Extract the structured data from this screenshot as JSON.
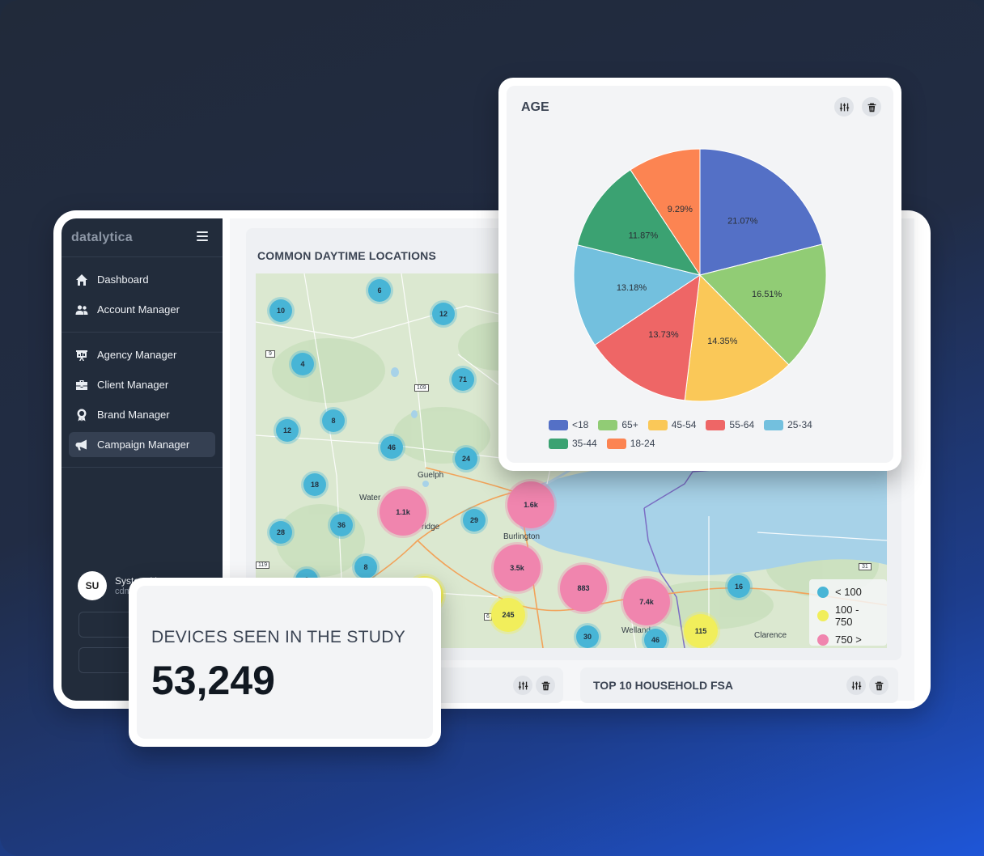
{
  "sidebar": {
    "logo": "datalytica",
    "items": [
      {
        "label": "Dashboard",
        "icon": "home-icon"
      },
      {
        "label": "Account Manager",
        "icon": "users-icon"
      },
      {
        "label": "Agency Manager",
        "icon": "presentation-icon"
      },
      {
        "label": "Client Manager",
        "icon": "briefcase-icon"
      },
      {
        "label": "Brand Manager",
        "icon": "award-icon"
      },
      {
        "label": "Campaign Manager",
        "icon": "megaphone-icon"
      }
    ],
    "user": {
      "initials": "SU",
      "name": "System User",
      "email": "cdm"
    },
    "button1": "M",
    "button2": "S"
  },
  "map_card": {
    "title": "COMMON DAYTIME LOCATIONS",
    "places": [
      "Guelph",
      "Water",
      "ridge",
      "Burlington",
      "Welland",
      "Clarence"
    ],
    "road_labels": [
      "9",
      "109",
      "119",
      "31",
      "6"
    ],
    "clusters": [
      "6",
      "12",
      "10",
      "4",
      "71",
      "8",
      "12",
      "46",
      "24",
      "18",
      "1.1k",
      "1.6k",
      "36",
      "29",
      "28",
      "8",
      "3.5k",
      "2",
      "883",
      "7.4k",
      "16",
      "245",
      "30",
      "46",
      "115"
    ],
    "legend": [
      {
        "label": "< 100",
        "color": "#48b5d6"
      },
      {
        "label": "100 - 750",
        "color": "#f1ee5b"
      },
      {
        "label": "750 >",
        "color": "#f085ae"
      }
    ]
  },
  "bottom_cards": {
    "right_title": "TOP 10 HOUSEHOLD FSA"
  },
  "age_card": {
    "title": "AGE"
  },
  "chart_data": {
    "type": "pie",
    "title": "AGE",
    "categories": [
      "<18",
      "65+",
      "45-54",
      "55-64",
      "25-34",
      "35-44",
      "18-24"
    ],
    "values": [
      21.07,
      16.51,
      14.35,
      13.73,
      13.18,
      11.87,
      9.29
    ],
    "labels": [
      "21.07%",
      "16.51%",
      "14.35%",
      "13.73%",
      "13.18%",
      "11.87%",
      "9.29%"
    ],
    "colors": [
      "#5470c6",
      "#91cc75",
      "#fac858",
      "#ee6666",
      "#73c0de",
      "#3ba272",
      "#fc8452"
    ],
    "legend_placement": "bottom"
  },
  "devices_card": {
    "title": "DEVICES SEEN IN THE STUDY",
    "value": "53,249"
  }
}
